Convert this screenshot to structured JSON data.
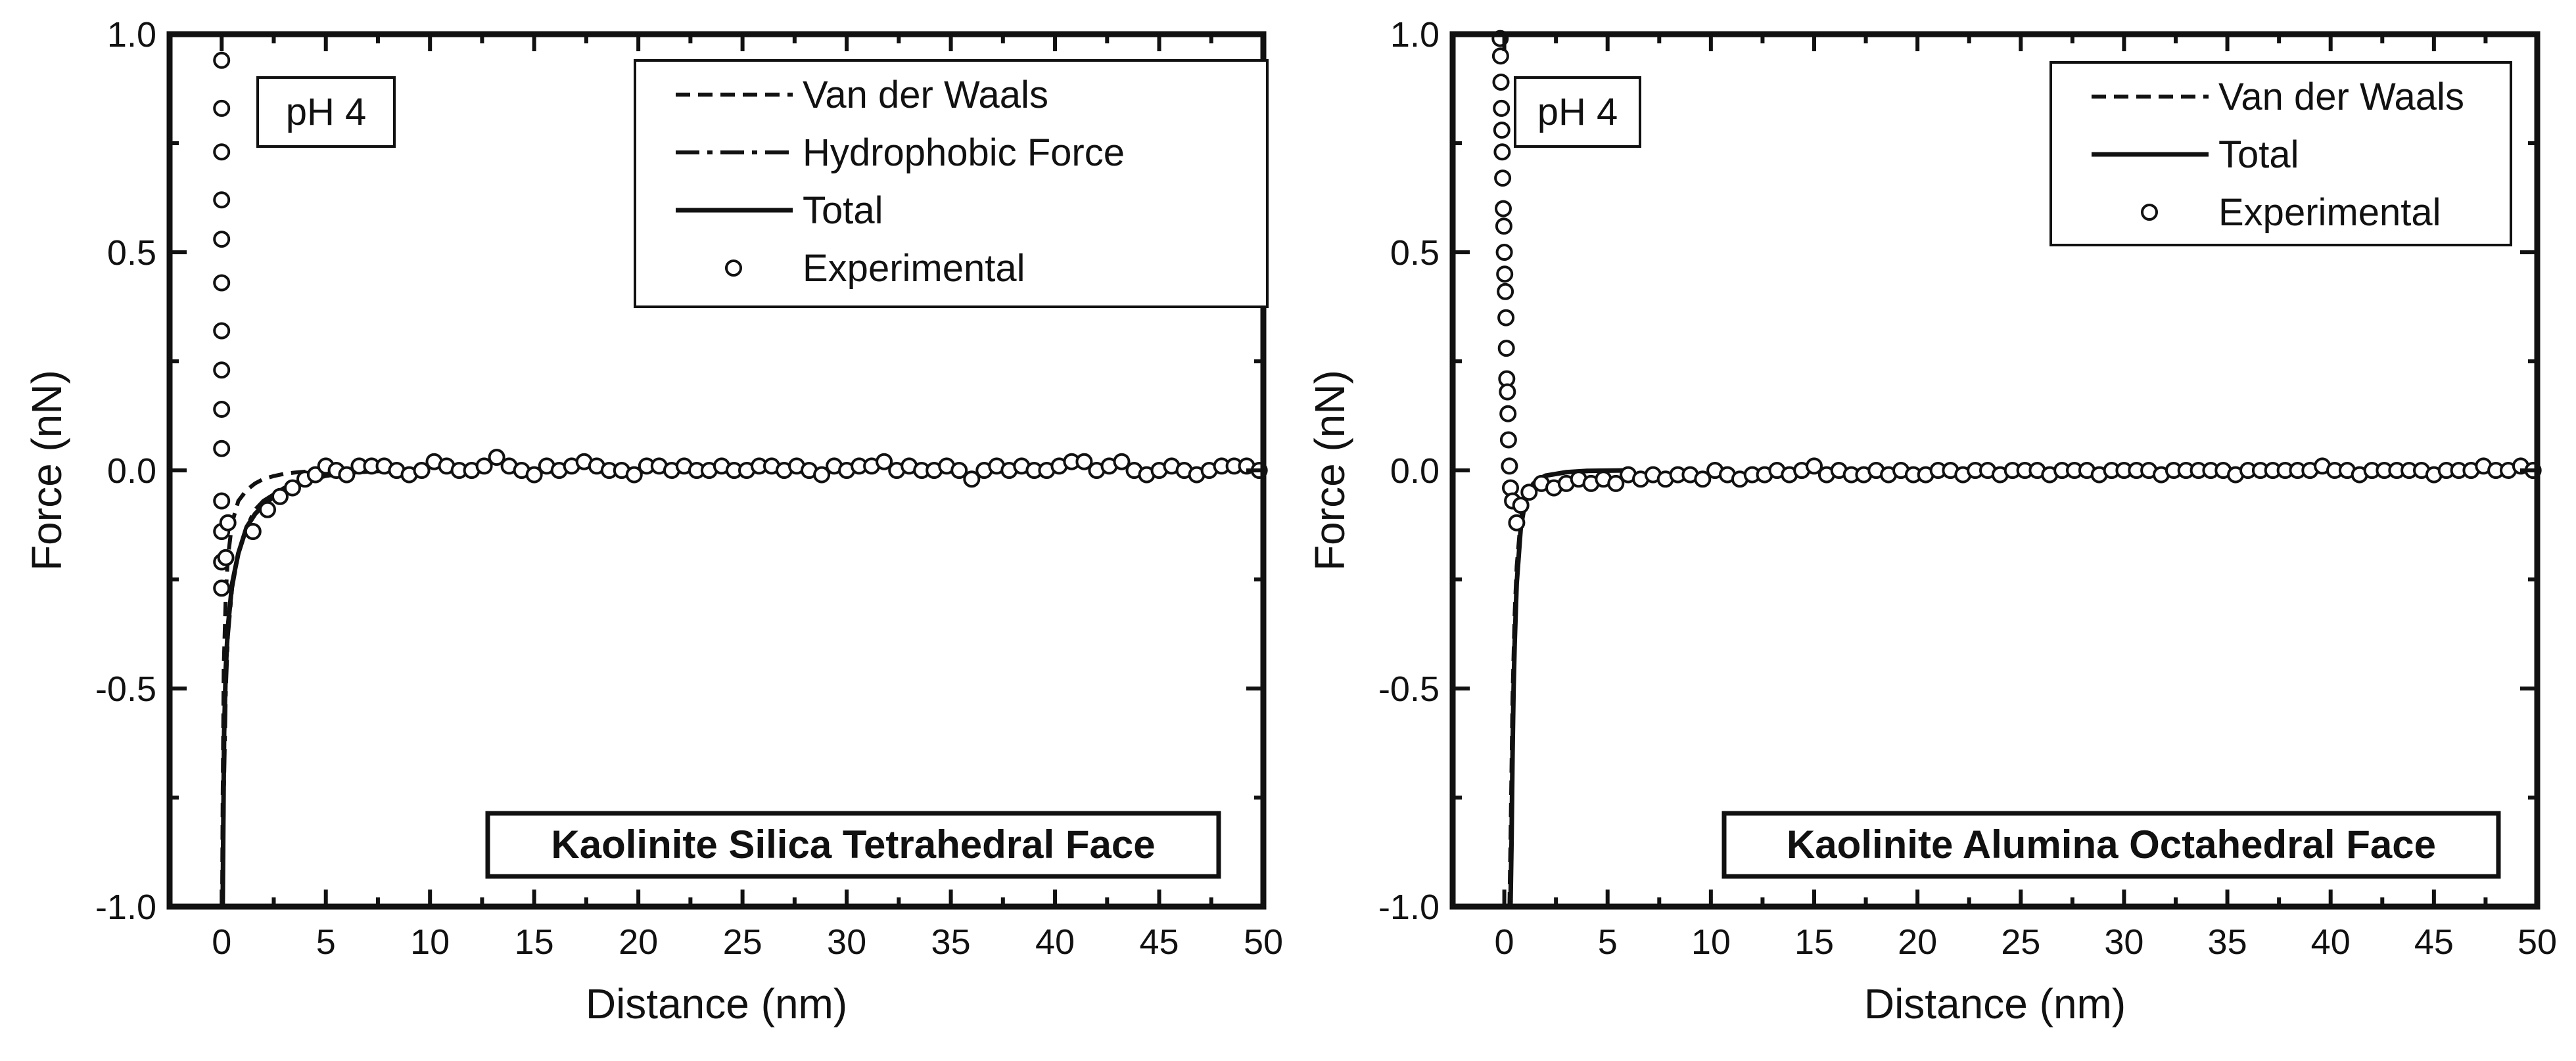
{
  "chart_data": [
    {
      "type": "scatter",
      "title": "Kaolinite Silica Tetrahedral Face",
      "annotation": "pH 4",
      "xlabel": "Distance (nm)",
      "ylabel": "Force (nN)",
      "xlim": [
        -2.5,
        50
      ],
      "ylim": [
        -1.0,
        1.0
      ],
      "x_ticks": [
        0,
        5,
        10,
        15,
        20,
        25,
        30,
        35,
        40,
        45,
        50
      ],
      "x_tick_labels": [
        "0",
        "5",
        "10",
        "15",
        "20",
        "25",
        "30",
        "35",
        "40",
        "45",
        "50"
      ],
      "y_ticks": [
        -1.0,
        -0.5,
        0.0,
        0.5,
        1.0
      ],
      "y_tick_labels": [
        "-1.0",
        "-0.5",
        "0.0",
        "0.5",
        "1.0"
      ],
      "legend_position": "top-right",
      "legend": [
        {
          "label": "Van der Waals",
          "style": "dashed"
        },
        {
          "label": "Hydrophobic Force",
          "style": "dash-dot"
        },
        {
          "label": "Total",
          "style": "solid"
        },
        {
          "label": "Experimental",
          "style": "open-circle"
        }
      ],
      "series": [
        {
          "name": "Van der Waals",
          "style": "dashed",
          "x": [
            0.02,
            0.05,
            0.1,
            0.2,
            0.3,
            0.5,
            0.8,
            1.2,
            1.6,
            2,
            2.5,
            3,
            3.5,
            4,
            5,
            6,
            8,
            10
          ],
          "y": [
            -1.0,
            -0.75,
            -0.45,
            -0.28,
            -0.2,
            -0.12,
            -0.07,
            -0.045,
            -0.03,
            -0.02,
            -0.013,
            -0.008,
            -0.005,
            -0.003,
            -0.001,
            0,
            0,
            0
          ]
        },
        {
          "name": "Hydrophobic Force",
          "style": "dash-dot",
          "x": [
            0.05,
            0.1,
            0.2,
            0.3,
            0.5,
            0.8,
            1.2,
            1.6,
            2,
            3,
            4,
            5,
            6,
            8
          ],
          "y": [
            -1.0,
            -0.75,
            -0.5,
            -0.38,
            -0.27,
            -0.19,
            -0.13,
            -0.09,
            -0.07,
            -0.04,
            -0.022,
            -0.012,
            -0.006,
            0
          ]
        },
        {
          "name": "Total",
          "style": "solid",
          "x": [
            0.05,
            0.08,
            0.12,
            0.2,
            0.3,
            0.5,
            0.8,
            1.2,
            1.6,
            2,
            2.5,
            3,
            4,
            5,
            6,
            8,
            10
          ],
          "y": [
            -1.0,
            -0.8,
            -0.6,
            -0.45,
            -0.36,
            -0.26,
            -0.19,
            -0.13,
            -0.1,
            -0.08,
            -0.06,
            -0.045,
            -0.025,
            -0.012,
            -0.005,
            0,
            0
          ]
        },
        {
          "name": "Experimental",
          "style": "open-circle",
          "x": [
            0,
            0,
            0,
            0,
            0,
            0,
            0,
            0,
            0,
            0,
            0,
            0,
            0,
            0,
            0.2,
            0.3,
            1.5,
            2.2,
            2.8,
            3.4,
            4.0,
            4.5,
            5.0,
            5.5,
            6.0,
            6.6,
            7.2,
            7.8,
            8.4,
            9.0,
            9.6,
            10.2,
            10.8,
            11.4,
            12.0,
            12.6,
            13.2,
            13.8,
            14.4,
            15.0,
            15.6,
            16.2,
            16.8,
            17.4,
            18.0,
            18.6,
            19.2,
            19.8,
            20.4,
            21.0,
            21.6,
            22.2,
            22.8,
            23.4,
            24.0,
            24.6,
            25.2,
            25.8,
            26.4,
            27.0,
            27.6,
            28.2,
            28.8,
            29.4,
            30.0,
            30.6,
            31.2,
            31.8,
            32.4,
            33.0,
            33.6,
            34.2,
            34.8,
            35.4,
            36.0,
            36.6,
            37.2,
            37.8,
            38.4,
            39.0,
            39.6,
            40.2,
            40.8,
            41.4,
            42.0,
            42.6,
            43.2,
            43.8,
            44.4,
            45.0,
            45.6,
            46.2,
            46.8,
            47.4,
            48.0,
            48.6,
            49.2,
            49.8
          ],
          "y": [
            0.94,
            0.83,
            0.73,
            0.62,
            0.53,
            0.43,
            0.32,
            0.23,
            0.14,
            0.05,
            -0.07,
            -0.14,
            -0.21,
            -0.27,
            -0.2,
            -0.12,
            -0.14,
            -0.09,
            -0.06,
            -0.04,
            -0.02,
            -0.01,
            0.01,
            0.0,
            -0.01,
            0.01,
            0.01,
            0.01,
            0.0,
            -0.01,
            0.0,
            0.02,
            0.01,
            0.0,
            0.0,
            0.01,
            0.03,
            0.01,
            0.0,
            -0.01,
            0.01,
            0.0,
            0.01,
            0.02,
            0.01,
            0.0,
            0.0,
            -0.01,
            0.01,
            0.01,
            0.0,
            0.01,
            0.0,
            0.0,
            0.01,
            0.0,
            0.0,
            0.01,
            0.01,
            0.0,
            0.01,
            0.0,
            -0.01,
            0.01,
            0.0,
            0.01,
            0.01,
            0.02,
            0.0,
            0.01,
            0.0,
            0.0,
            0.01,
            0.0,
            -0.02,
            0.0,
            0.01,
            0.0,
            0.01,
            0.0,
            0.0,
            0.01,
            0.02,
            0.02,
            0.0,
            0.01,
            0.02,
            0.0,
            -0.01,
            0.0,
            0.01,
            0.0,
            -0.01,
            0.0,
            0.01,
            0.01,
            0.01,
            0.0
          ]
        }
      ]
    },
    {
      "type": "scatter",
      "title": "Kaolinite Alumina Octahedral Face",
      "annotation": "pH 4",
      "xlabel": "Distance (nm)",
      "ylabel": "Force (nN)",
      "xlim": [
        -2.5,
        50
      ],
      "ylim": [
        -1.0,
        1.0
      ],
      "x_ticks": [
        0,
        5,
        10,
        15,
        20,
        25,
        30,
        35,
        40,
        45,
        50
      ],
      "x_tick_labels": [
        "0",
        "5",
        "10",
        "15",
        "20",
        "25",
        "30",
        "35",
        "40",
        "45",
        "50"
      ],
      "y_ticks": [
        -1.0,
        -0.5,
        0.0,
        0.5,
        1.0
      ],
      "y_tick_labels": [
        "-1.0",
        "-0.5",
        "0.0",
        "0.5",
        "1.0"
      ],
      "legend_position": "top-right",
      "legend": [
        {
          "label": "Van der Waals",
          "style": "dashed"
        },
        {
          "label": "Total",
          "style": "solid"
        },
        {
          "label": "Experimental",
          "style": "open-circle"
        }
      ],
      "series": [
        {
          "name": "Van der Waals",
          "style": "dashed",
          "x": [
            0.25,
            0.3,
            0.35,
            0.4,
            0.5,
            0.6,
            0.8,
            1.0,
            1.3,
            1.6,
            2,
            3,
            4,
            6
          ],
          "y": [
            -1.0,
            -0.85,
            -0.68,
            -0.52,
            -0.33,
            -0.22,
            -0.11,
            -0.065,
            -0.035,
            -0.02,
            -0.012,
            -0.005,
            -0.002,
            0
          ]
        },
        {
          "name": "Total",
          "style": "solid",
          "x": [
            0.3,
            0.35,
            0.4,
            0.45,
            0.5,
            0.6,
            0.8,
            1.0,
            1.3,
            1.6,
            2,
            3,
            4,
            6
          ],
          "y": [
            -1.0,
            -0.85,
            -0.65,
            -0.5,
            -0.4,
            -0.26,
            -0.13,
            -0.075,
            -0.04,
            -0.022,
            -0.012,
            -0.004,
            -0.001,
            0
          ]
        },
        {
          "name": "Experimental",
          "style": "open-circle",
          "x": [
            -0.2,
            -0.18,
            -0.16,
            -0.14,
            -0.12,
            -0.1,
            -0.08,
            -0.05,
            -0.02,
            0.0,
            0.02,
            0.05,
            0.08,
            0.1,
            0.12,
            0.15,
            0.18,
            0.2,
            0.25,
            0.3,
            0.4,
            0.6,
            0.8,
            1.2,
            1.8,
            2.4,
            3.0,
            3.6,
            4.2,
            4.8,
            5.4,
            6.0,
            6.6,
            7.2,
            7.8,
            8.4,
            9.0,
            9.6,
            10.2,
            10.8,
            11.4,
            12.0,
            12.6,
            13.2,
            13.8,
            14.4,
            15.0,
            15.6,
            16.2,
            16.8,
            17.4,
            18.0,
            18.6,
            19.2,
            19.8,
            20.4,
            21.0,
            21.6,
            22.2,
            22.8,
            23.4,
            24.0,
            24.6,
            25.2,
            25.8,
            26.4,
            27.0,
            27.6,
            28.2,
            28.8,
            29.4,
            30.0,
            30.6,
            31.2,
            31.8,
            32.4,
            33.0,
            33.6,
            34.2,
            34.8,
            35.4,
            36.0,
            36.6,
            37.2,
            37.8,
            38.4,
            39.0,
            39.6,
            40.2,
            40.8,
            41.4,
            42.0,
            42.6,
            43.2,
            43.8,
            44.4,
            45.0,
            45.6,
            46.2,
            46.8,
            47.4,
            48.0,
            48.6,
            49.2,
            49.8
          ],
          "y": [
            0.99,
            0.95,
            0.89,
            0.83,
            0.78,
            0.73,
            0.67,
            0.6,
            0.56,
            0.5,
            0.45,
            0.41,
            0.35,
            0.28,
            0.21,
            0.18,
            0.13,
            0.07,
            0.01,
            -0.04,
            -0.07,
            -0.12,
            -0.08,
            -0.05,
            -0.03,
            -0.04,
            -0.03,
            -0.02,
            -0.03,
            -0.02,
            -0.03,
            -0.01,
            -0.02,
            -0.01,
            -0.02,
            -0.01,
            -0.01,
            -0.02,
            0.0,
            -0.01,
            -0.02,
            -0.01,
            -0.01,
            0.0,
            -0.01,
            0.0,
            0.01,
            -0.01,
            0.0,
            -0.01,
            -0.01,
            0.0,
            -0.01,
            0.0,
            -0.01,
            -0.01,
            0.0,
            0.0,
            -0.01,
            0.0,
            0.0,
            -0.01,
            0.0,
            0.0,
            0.0,
            -0.01,
            0.0,
            0.0,
            0.0,
            -0.01,
            0.0,
            0.0,
            0.0,
            0.0,
            -0.01,
            0.0,
            0.0,
            0.0,
            0.0,
            0.0,
            -0.01,
            0.0,
            0.0,
            0.0,
            0.0,
            0.0,
            0.0,
            0.01,
            0.0,
            0.0,
            -0.01,
            0.0,
            0.0,
            0.0,
            0.0,
            0.0,
            -0.01,
            0.0,
            0.0,
            0.0,
            0.01,
            0.0,
            0.0,
            0.01,
            0.0
          ]
        }
      ]
    }
  ]
}
